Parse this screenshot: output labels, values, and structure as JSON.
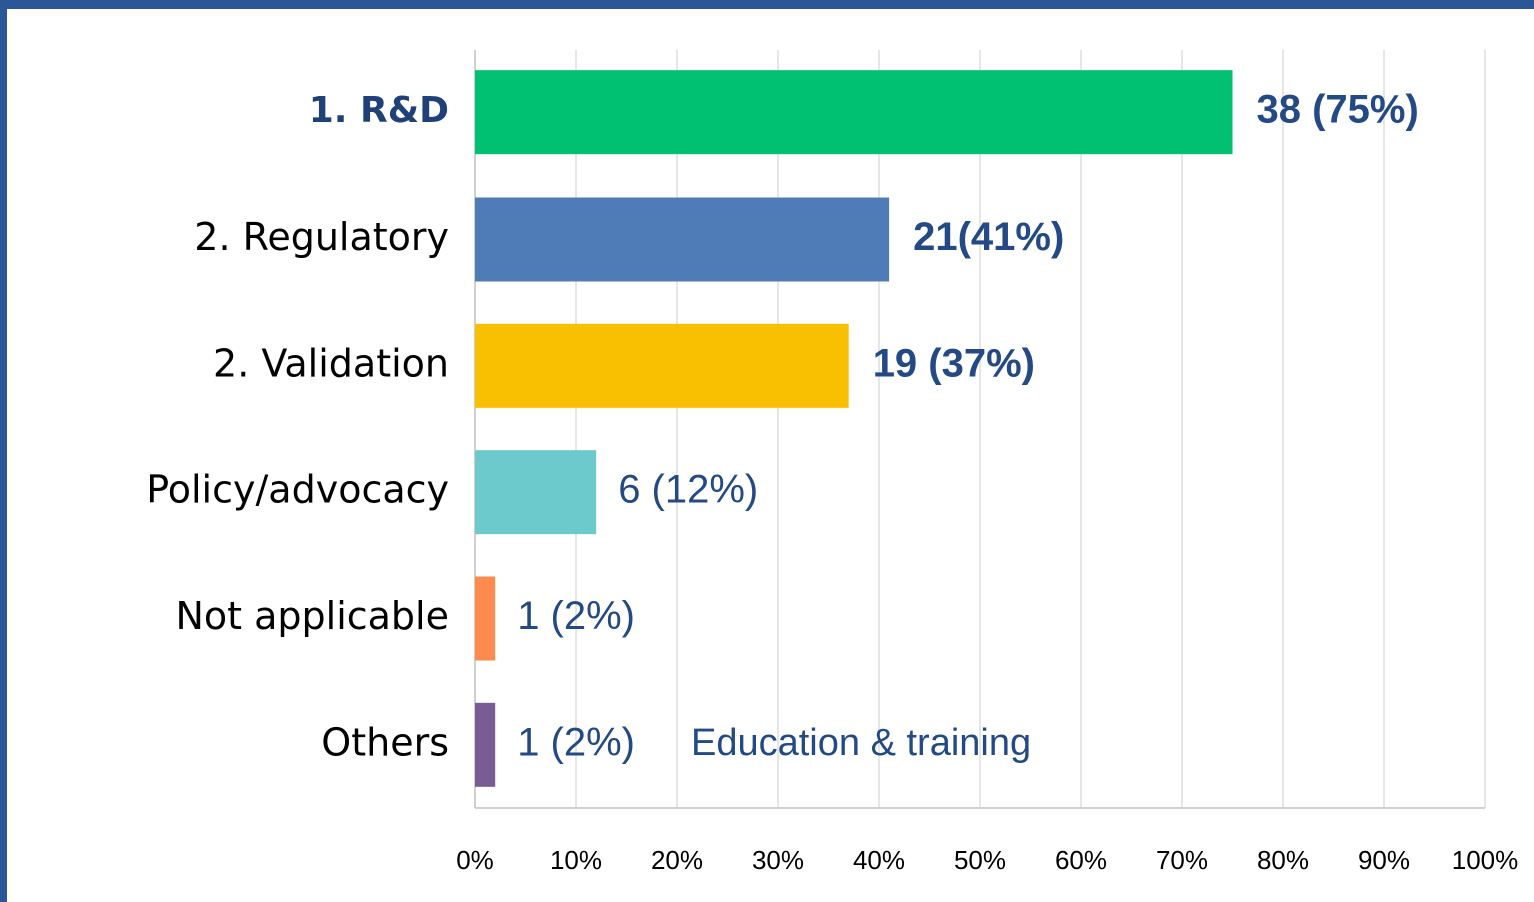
{
  "chart_data": {
    "type": "barh",
    "categories": [
      "1. R&D",
      "2. Regulatory",
      "2. Validation",
      "Policy/advocacy",
      "Not applicable",
      "Others"
    ],
    "values": [
      75,
      41,
      37,
      12,
      2,
      2
    ],
    "value_labels": [
      "38 (75%)",
      "21(41%)",
      "19 (37%)",
      "6 (12%)",
      "1 (2%)",
      "1 (2%)"
    ],
    "colors": [
      "#00c172",
      "#4f7bb7",
      "#f8c000",
      "#6ccacc",
      "#fd8b4e",
      "#7a5c94"
    ],
    "xlim": [
      0,
      100
    ],
    "xticks": [
      {
        "value": 0,
        "label": "0%"
      },
      {
        "value": 10,
        "label": "10%"
      },
      {
        "value": 20,
        "label": "20%"
      },
      {
        "value": 30,
        "label": "30%"
      },
      {
        "value": 40,
        "label": "40%"
      },
      {
        "value": 50,
        "label": "50%"
      },
      {
        "value": 60,
        "label": "60%"
      },
      {
        "value": 70,
        "label": "70%"
      },
      {
        "value": 80,
        "label": "80%"
      },
      {
        "value": 90,
        "label": "90%"
      },
      {
        "value": 100,
        "label": "100%"
      }
    ],
    "grid": true,
    "annotations": [
      {
        "text": "Education & training",
        "category": 5
      }
    ]
  }
}
